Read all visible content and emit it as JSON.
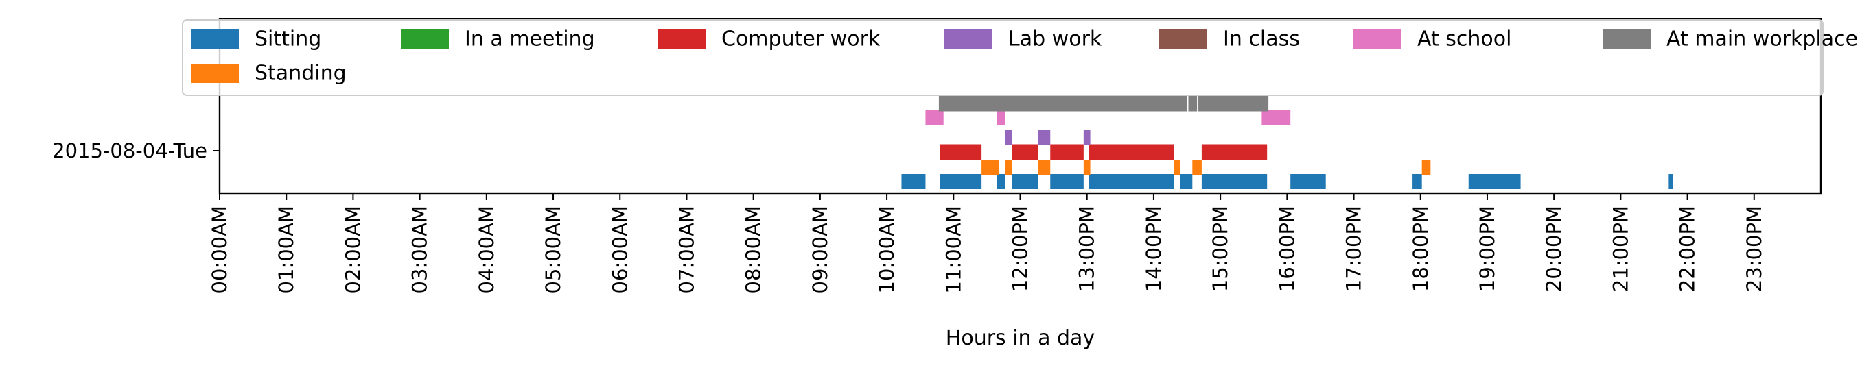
{
  "chart_data": {
    "type": "gantt",
    "xlabel": "Hours in a day",
    "ylabel": "",
    "title": "",
    "xlim": [
      0,
      24
    ],
    "x_ticks": [
      "00:00AM",
      "01:00AM",
      "02:00AM",
      "03:00AM",
      "04:00AM",
      "05:00AM",
      "06:00AM",
      "07:00AM",
      "08:00AM",
      "09:00AM",
      "10:00AM",
      "11:00AM",
      "12:00PM",
      "13:00PM",
      "14:00PM",
      "15:00PM",
      "16:00PM",
      "17:00PM",
      "18:00PM",
      "19:00PM",
      "20:00PM",
      "21:00PM",
      "22:00PM",
      "23:00PM"
    ],
    "y_categories": [
      "2015-08-04-Tue"
    ],
    "grid": false,
    "legend_position": "top",
    "series": [
      {
        "name": "Sitting",
        "color": "#1f77b4",
        "intervals": [
          [
            10.22,
            10.58
          ],
          [
            10.8,
            11.42
          ],
          [
            11.65,
            11.77
          ],
          [
            11.88,
            12.27
          ],
          [
            12.45,
            12.95
          ],
          [
            13.03,
            14.3
          ],
          [
            14.4,
            14.58
          ],
          [
            14.72,
            15.7
          ],
          [
            16.05,
            16.58
          ],
          [
            17.88,
            18.02
          ],
          [
            18.72,
            19.5
          ],
          [
            21.72,
            21.78
          ]
        ]
      },
      {
        "name": "Standing",
        "color": "#ff7f0e",
        "intervals": [
          [
            11.42,
            11.68
          ],
          [
            11.77,
            11.88
          ],
          [
            12.27,
            12.45
          ],
          [
            12.95,
            13.05
          ],
          [
            14.3,
            14.4
          ],
          [
            14.58,
            14.72
          ],
          [
            18.02,
            18.15
          ]
        ]
      },
      {
        "name": "In a meeting",
        "color": "#2ca02c",
        "intervals": []
      },
      {
        "name": "Computer work",
        "color": "#d62728",
        "intervals": [
          [
            10.8,
            11.42
          ],
          [
            11.88,
            12.27
          ],
          [
            12.45,
            12.95
          ],
          [
            13.03,
            14.3
          ],
          [
            14.72,
            15.7
          ]
        ]
      },
      {
        "name": "Lab work",
        "color": "#9467bd",
        "intervals": [
          [
            11.77,
            11.88
          ],
          [
            12.27,
            12.45
          ],
          [
            12.95,
            13.05
          ]
        ]
      },
      {
        "name": "In class",
        "color": "#8c564b",
        "intervals": []
      },
      {
        "name": "At school",
        "color": "#e377c2",
        "intervals": [
          [
            10.58,
            10.85
          ],
          [
            11.65,
            11.77
          ],
          [
            15.62,
            16.05
          ]
        ]
      },
      {
        "name": "At main workplace",
        "color": "#7f7f7f",
        "intervals": [
          [
            10.78,
            14.5
          ],
          [
            14.52,
            14.65
          ],
          [
            14.67,
            15.72
          ]
        ]
      }
    ]
  }
}
